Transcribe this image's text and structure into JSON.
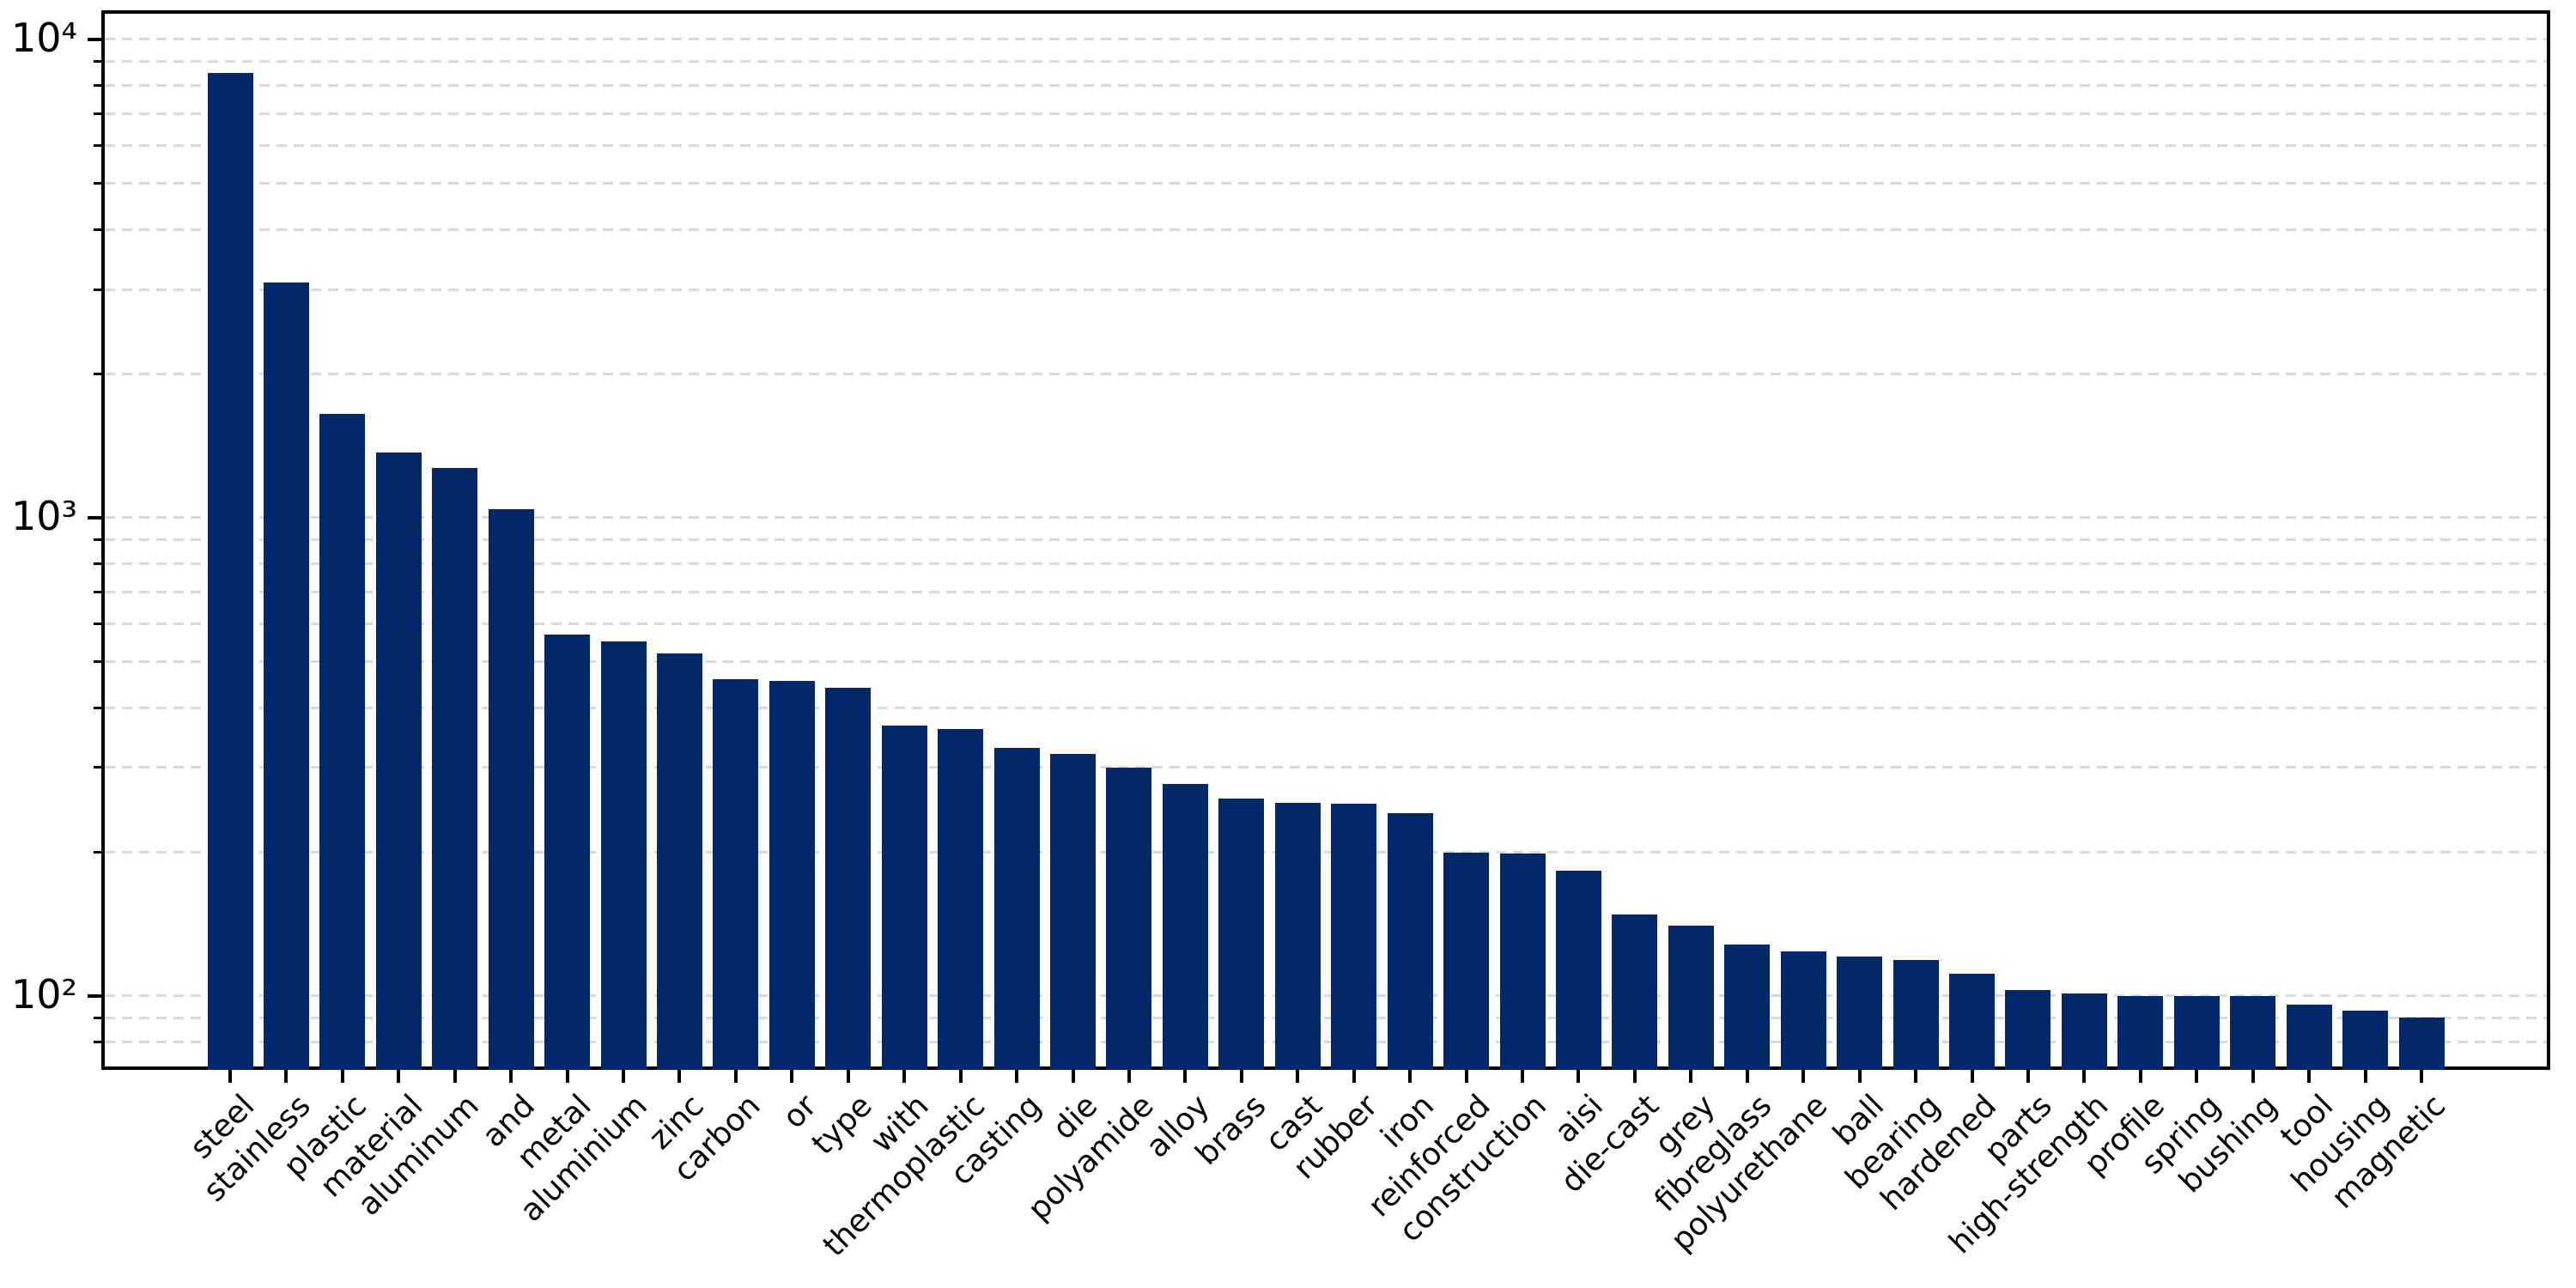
{
  "chart_data": {
    "type": "bar",
    "title": "",
    "xlabel": "",
    "ylabel": "",
    "yscale": "log",
    "ylim": [
      70,
      11500
    ],
    "grid": "horizontal-dashed-minor-and-major",
    "legend": "none",
    "categories": [
      "steel",
      "stainless",
      "plastic",
      "material",
      "aluminum",
      "and",
      "metal",
      "aluminium",
      "zinc",
      "carbon",
      "or",
      "type",
      "with",
      "thermoplastic",
      "casting",
      "die",
      "polyamide",
      "alloy",
      "brass",
      "cast",
      "rubber",
      "iron",
      "reinforced",
      "construction",
      "aisi",
      "die-cast",
      "grey",
      "fibreglass",
      "polyurethane",
      "ball",
      "bearing",
      "hardened",
      "parts",
      "high-strength",
      "profile",
      "spring",
      "bushing",
      "tool",
      "housing",
      "magnetic"
    ],
    "values": [
      8500,
      3100,
      1650,
      1370,
      1270,
      1040,
      570,
      550,
      520,
      460,
      455,
      440,
      368,
      362,
      330,
      320,
      300,
      277,
      259,
      253,
      252,
      241,
      199,
      198,
      183,
      148,
      140,
      128,
      124,
      121,
      119,
      111,
      103,
      101,
      100,
      100,
      100,
      96,
      93,
      90
    ],
    "y_major_tick_values": [
      100,
      1000,
      10000
    ],
    "y_major_tick_labels": [
      "10²",
      "10³",
      "10⁴"
    ],
    "colors": {
      "bar": "#02286b",
      "grid": "#d9d9d9",
      "axis": "#000000",
      "background": "#ffffff"
    }
  }
}
